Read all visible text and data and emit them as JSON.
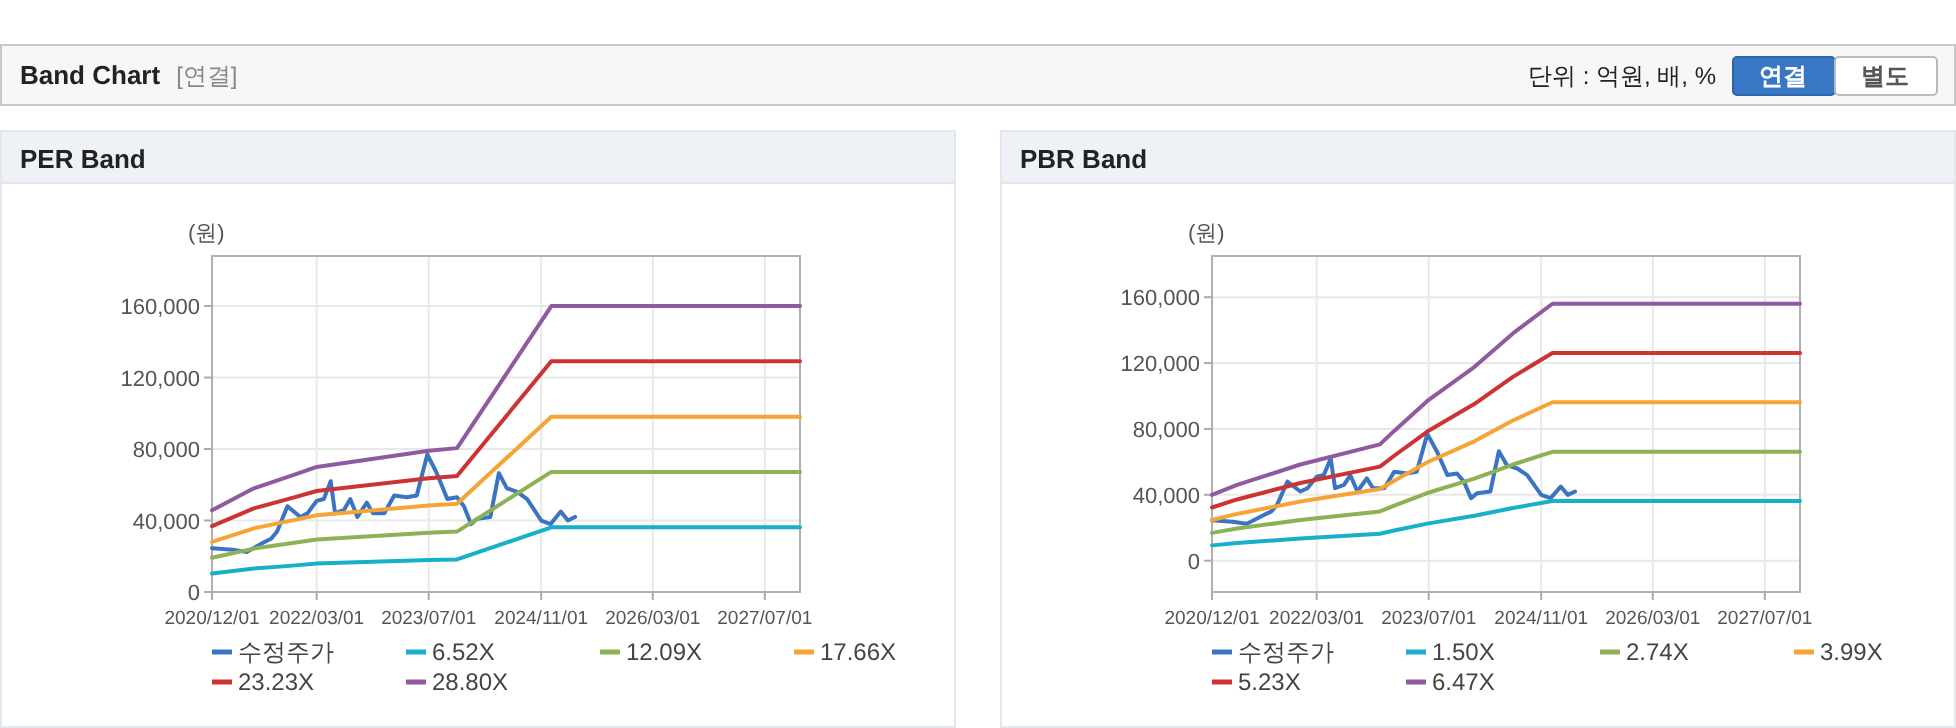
{
  "chart_data": [
    {
      "type": "other",
      "title": "Band Chart",
      "annotations": [
        "[연결]",
        "단위 : 억원, 배, %",
        "연결",
        "별도"
      ]
    },
    {
      "type": "line",
      "title": "PER Band",
      "ylabel": "(원)",
      "grid": true,
      "legend": "bottom",
      "xlim": [
        "2020-12-01",
        "2027-12-01"
      ],
      "ylim": [
        0,
        188000
      ],
      "xticks": [
        {
          "value": "2020-12-01",
          "label": "2020/12/01"
        },
        {
          "value": "2022-03-01",
          "label": "2022/03/01"
        },
        {
          "value": "2023-07-01",
          "label": "2023/07/01"
        },
        {
          "value": "2024-11-01",
          "label": "2024/11/01"
        },
        {
          "value": "2026-03-01",
          "label": "2026/03/01"
        },
        {
          "value": "2027-07-01",
          "label": "2027/07/01"
        }
      ],
      "yticks": [
        {
          "value": 0,
          "label": "0"
        },
        {
          "value": 40000,
          "label": "40,000"
        },
        {
          "value": 80000,
          "label": "80,000"
        },
        {
          "value": 120000,
          "label": "120,000"
        },
        {
          "value": 160000,
          "label": "160,000"
        }
      ],
      "x": [
        "2020-12-01",
        "2021-06-01",
        "2021-12-01",
        "2022-03-01",
        "2023-07-01",
        "2023-11-01",
        "2024-12-15",
        "2027-12-01"
      ],
      "series": [
        {
          "name": "수정주가",
          "color": "#3a75c4",
          "x": [
            "2020-12-01",
            "2021-03-01",
            "2021-05-01",
            "2021-07-15",
            "2021-08-15",
            "2021-09-10",
            "2021-10-25",
            "2021-12-20",
            "2022-01-20",
            "2022-03-01",
            "2022-04-01",
            "2022-05-01",
            "2022-05-20",
            "2022-06-28",
            "2022-07-25",
            "2022-08-25",
            "2022-10-05",
            "2022-11-01",
            "2022-12-20",
            "2023-02-01",
            "2023-03-28",
            "2023-05-10",
            "2023-06-25",
            "2023-08-05",
            "2023-09-20",
            "2023-11-01",
            "2023-12-01",
            "2024-01-01",
            "2024-01-28",
            "2024-03-25",
            "2024-05-01",
            "2024-06-05",
            "2024-07-20",
            "2024-09-01",
            "2024-11-01",
            "2024-12-12",
            "2025-01-25",
            "2025-02-25",
            "2025-03-28"
          ],
          "values": [
            24500,
            23700,
            22400,
            27800,
            29800,
            33900,
            48000,
            42000,
            44000,
            51000,
            52000,
            62000,
            44000,
            46000,
            52000,
            42000,
            50000,
            44000,
            44000,
            54000,
            53000,
            54000,
            77000,
            66500,
            52000,
            53000,
            48000,
            38000,
            41000,
            42000,
            66500,
            58000,
            56000,
            52000,
            40000,
            38000,
            45000,
            40000,
            42000
          ]
        },
        {
          "name": "6.52X",
          "color": "#17b0c9",
          "values": [
            10300,
            13100,
            14900,
            15900,
            17900,
            18200,
            36200,
            36200
          ]
        },
        {
          "name": "12.09X",
          "color": "#8db255",
          "values": [
            19200,
            24300,
            27700,
            29400,
            33200,
            33800,
            67200,
            67200
          ]
        },
        {
          "name": "17.66X",
          "color": "#f5a535",
          "values": [
            28000,
            35600,
            40500,
            42900,
            48400,
            49400,
            98100,
            98100
          ]
        },
        {
          "name": "23.23X",
          "color": "#cc3333",
          "values": [
            36900,
            46800,
            53200,
            56500,
            63700,
            64900,
            129100,
            129100
          ]
        },
        {
          "name": "28.80X",
          "color": "#8f5a9f",
          "values": [
            45700,
            58000,
            66000,
            70000,
            79000,
            80500,
            160000,
            160000
          ]
        }
      ]
    },
    {
      "type": "line",
      "title": "PBR Band",
      "ylabel": "(원)",
      "grid": true,
      "legend": "bottom",
      "xlim": [
        "2020-12-01",
        "2027-12-01"
      ],
      "ylim": [
        -19000,
        185000
      ],
      "xticks": [
        {
          "value": "2020-12-01",
          "label": "2020/12/01"
        },
        {
          "value": "2022-03-01",
          "label": "2022/03/01"
        },
        {
          "value": "2023-07-01",
          "label": "2023/07/01"
        },
        {
          "value": "2024-11-01",
          "label": "2024/11/01"
        },
        {
          "value": "2026-03-01",
          "label": "2026/03/01"
        },
        {
          "value": "2027-07-01",
          "label": "2027/07/01"
        }
      ],
      "yticks": [
        {
          "value": 0,
          "label": "0"
        },
        {
          "value": 40000,
          "label": "40,000"
        },
        {
          "value": 80000,
          "label": "80,000"
        },
        {
          "value": 120000,
          "label": "120,000"
        },
        {
          "value": 160000,
          "label": "160,000"
        }
      ],
      "x": [
        "2020-12-01",
        "2021-03-20",
        "2021-12-20",
        "2022-12-01",
        "2023-02-01",
        "2023-06-25",
        "2024-01-15",
        "2024-07-01",
        "2024-12-20",
        "2027-12-01"
      ],
      "series": [
        {
          "name": "수정주가",
          "color": "#3a75c4",
          "x": [
            "2020-12-01",
            "2021-03-01",
            "2021-05-01",
            "2021-07-15",
            "2021-08-15",
            "2021-09-10",
            "2021-10-25",
            "2021-12-20",
            "2022-01-20",
            "2022-03-01",
            "2022-04-01",
            "2022-05-01",
            "2022-05-20",
            "2022-06-28",
            "2022-07-25",
            "2022-08-25",
            "2022-10-05",
            "2022-11-01",
            "2022-12-20",
            "2023-02-01",
            "2023-03-28",
            "2023-05-10",
            "2023-06-25",
            "2023-08-05",
            "2023-09-20",
            "2023-11-01",
            "2023-12-01",
            "2024-01-01",
            "2024-01-28",
            "2024-03-25",
            "2024-05-01",
            "2024-06-05",
            "2024-07-20",
            "2024-09-01",
            "2024-11-01",
            "2024-12-12",
            "2025-01-25",
            "2025-02-25",
            "2025-03-28"
          ],
          "values": [
            24500,
            23700,
            22400,
            27800,
            29800,
            33900,
            48000,
            42000,
            44000,
            51000,
            52000,
            62000,
            44000,
            46000,
            52000,
            42000,
            50000,
            44000,
            44000,
            54000,
            53000,
            54000,
            77000,
            66500,
            52000,
            53000,
            48000,
            38000,
            41000,
            42000,
            66500,
            58000,
            56000,
            52000,
            40000,
            38000,
            45000,
            40000,
            42000
          ]
        },
        {
          "name": "1.50X",
          "color": "#17b0c9",
          "values": [
            9300,
            10700,
            13500,
            16400,
            18300,
            22500,
            27300,
            32000,
            36200,
            36200
          ]
        },
        {
          "name": "2.74X",
          "color": "#8db255",
          "values": [
            16900,
            19500,
            24700,
            29900,
            33400,
            41100,
            49800,
            58400,
            66100,
            66100
          ]
        },
        {
          "name": "3.99X",
          "color": "#f5a535",
          "values": [
            24700,
            28400,
            36000,
            43500,
            48600,
            59800,
            72500,
            85100,
            96200,
            96200
          ]
        },
        {
          "name": "5.23X",
          "color": "#cc3333",
          "values": [
            32300,
            37200,
            47200,
            57100,
            63700,
            78400,
            95100,
            111600,
            126100,
            126100
          ]
        },
        {
          "name": "6.47X",
          "color": "#8f5a9f",
          "values": [
            40000,
            46000,
            58400,
            70600,
            78800,
            97000,
            117600,
            138000,
            156000,
            156000
          ]
        }
      ]
    }
  ]
}
